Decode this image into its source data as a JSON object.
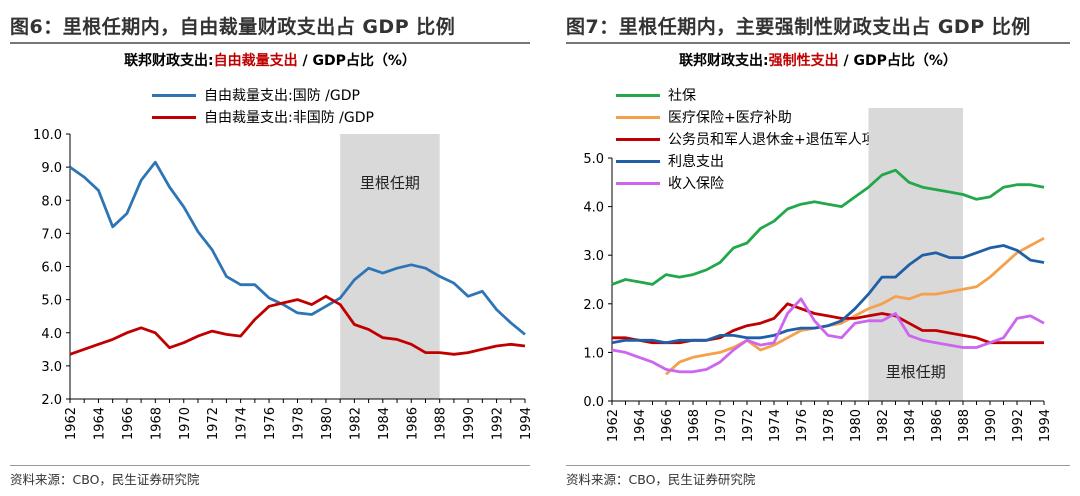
{
  "charts": [
    {
      "figure_title": "图6：里根任期内，自由裁量财政支出占 GDP 比例",
      "subtitle_prefix": "联邦财政支出:",
      "subtitle_highlight": "自由裁量支出",
      "subtitle_suffix": " / GDP占比（%）",
      "source": "资料来源：CBO，民生证券研究院"
    },
    {
      "figure_title": "图7：里根任期内，主要强制性财政支出占 GDP 比例",
      "subtitle_prefix": "联邦财政支出:",
      "subtitle_highlight": "强制性支出",
      "subtitle_suffix": " / GDP占比（%）",
      "source": "资料来源：CBO，民生证券研究院"
    }
  ],
  "chart_data": [
    {
      "type": "line",
      "shade": {
        "label": "里根任期",
        "from": 1981,
        "to": 1988
      },
      "xlim": [
        1962,
        1994
      ],
      "ylim": [
        2.0,
        10.0
      ],
      "yticks": [
        "2.0",
        "3.0",
        "4.0",
        "5.0",
        "6.0",
        "7.0",
        "8.0",
        "9.0",
        "10.0"
      ],
      "xticks": [
        "1962",
        "1964",
        "1966",
        "1968",
        "1970",
        "1972",
        "1974",
        "1976",
        "1978",
        "1980",
        "1982",
        "1984",
        "1986",
        "1988",
        "1990",
        "1992",
        "1994"
      ],
      "x": [
        1962,
        1963,
        1964,
        1965,
        1966,
        1967,
        1968,
        1969,
        1970,
        1971,
        1972,
        1973,
        1974,
        1975,
        1976,
        1977,
        1978,
        1979,
        1980,
        1981,
        1982,
        1983,
        1984,
        1985,
        1986,
        1987,
        1988,
        1989,
        1990,
        1991,
        1992,
        1993,
        1994
      ],
      "series": [
        {
          "name": "自由裁量支出:国防 /GDP",
          "color": "#2e75b6",
          "values": [
            9.0,
            8.7,
            8.3,
            7.2,
            7.6,
            8.6,
            9.15,
            8.4,
            7.8,
            7.05,
            6.5,
            5.7,
            5.45,
            5.45,
            5.05,
            4.85,
            4.6,
            4.55,
            4.8,
            5.05,
            5.6,
            5.95,
            5.8,
            5.95,
            6.05,
            5.95,
            5.7,
            5.5,
            5.1,
            5.25,
            4.7,
            4.3,
            3.95
          ]
        },
        {
          "name": "自由裁量支出:非国防 /GDP",
          "color": "#c00000",
          "values": [
            3.35,
            3.5,
            3.65,
            3.8,
            4.0,
            4.15,
            4.0,
            3.55,
            3.7,
            3.9,
            4.05,
            3.95,
            3.9,
            4.4,
            4.8,
            4.9,
            5.0,
            4.85,
            5.1,
            4.85,
            4.25,
            4.1,
            3.85,
            3.8,
            3.65,
            3.4,
            3.4,
            3.35,
            3.4,
            3.5,
            3.6,
            3.65,
            3.6
          ]
        }
      ]
    },
    {
      "type": "line",
      "shade": {
        "label": "里根任期",
        "from": 1981,
        "to": 1988
      },
      "xlim": [
        1962,
        1994
      ],
      "ylim": [
        0.0,
        5.0
      ],
      "yticks": [
        "0.0",
        "1.0",
        "2.0",
        "3.0",
        "4.0",
        "5.0"
      ],
      "xticks": [
        "1962",
        "1964",
        "1966",
        "1968",
        "1970",
        "1972",
        "1974",
        "1976",
        "1978",
        "1980",
        "1982",
        "1984",
        "1986",
        "1988",
        "1990",
        "1992",
        "1994"
      ],
      "x": [
        1962,
        1963,
        1964,
        1965,
        1966,
        1967,
        1968,
        1969,
        1970,
        1971,
        1972,
        1973,
        1974,
        1975,
        1976,
        1977,
        1978,
        1979,
        1980,
        1981,
        1982,
        1983,
        1984,
        1985,
        1986,
        1987,
        1988,
        1989,
        1990,
        1991,
        1992,
        1993,
        1994
      ],
      "series": [
        {
          "name": "社保",
          "color": "#22a84b",
          "values": [
            2.4,
            2.5,
            2.45,
            2.4,
            2.6,
            2.55,
            2.6,
            2.7,
            2.85,
            3.15,
            3.25,
            3.55,
            3.7,
            3.95,
            4.05,
            4.1,
            4.05,
            4.0,
            4.2,
            4.4,
            4.65,
            4.75,
            4.5,
            4.4,
            4.35,
            4.3,
            4.25,
            4.15,
            4.2,
            4.4,
            4.45,
            4.45,
            4.4
          ]
        },
        {
          "name": "医疗保险+医疗补助",
          "color": "#f5a04a",
          "values": [
            null,
            null,
            null,
            null,
            0.55,
            0.8,
            0.9,
            0.95,
            1.0,
            1.1,
            1.25,
            1.05,
            1.15,
            1.3,
            1.45,
            1.5,
            1.55,
            1.6,
            1.75,
            1.9,
            2.0,
            2.15,
            2.1,
            2.2,
            2.2,
            2.25,
            2.3,
            2.35,
            2.55,
            2.8,
            3.05,
            3.2,
            3.35
          ]
        },
        {
          "name": "公务员和军人退休金+退伍军人项目",
          "color": "#c00000",
          "values": [
            1.3,
            1.3,
            1.25,
            1.2,
            1.2,
            1.2,
            1.25,
            1.25,
            1.3,
            1.45,
            1.55,
            1.6,
            1.7,
            2.0,
            1.9,
            1.8,
            1.75,
            1.7,
            1.7,
            1.75,
            1.8,
            1.75,
            1.6,
            1.45,
            1.45,
            1.4,
            1.35,
            1.3,
            1.2,
            1.2,
            1.2,
            1.2,
            1.2
          ]
        },
        {
          "name": "利息支出",
          "color": "#1f5fa8",
          "values": [
            1.2,
            1.25,
            1.25,
            1.25,
            1.2,
            1.25,
            1.25,
            1.25,
            1.35,
            1.35,
            1.3,
            1.3,
            1.35,
            1.45,
            1.5,
            1.5,
            1.55,
            1.65,
            1.9,
            2.2,
            2.55,
            2.55,
            2.8,
            3.0,
            3.05,
            2.95,
            2.95,
            3.05,
            3.15,
            3.2,
            3.1,
            2.9,
            2.85
          ]
        },
        {
          "name": "收入保险",
          "color": "#cc66ee",
          "values": [
            1.05,
            1.0,
            0.9,
            0.8,
            0.65,
            0.6,
            0.6,
            0.65,
            0.8,
            1.05,
            1.25,
            1.15,
            1.2,
            1.8,
            2.1,
            1.65,
            1.35,
            1.3,
            1.6,
            1.65,
            1.65,
            1.8,
            1.35,
            1.25,
            1.2,
            1.15,
            1.1,
            1.1,
            1.2,
            1.3,
            1.7,
            1.75,
            1.6
          ]
        }
      ]
    }
  ]
}
